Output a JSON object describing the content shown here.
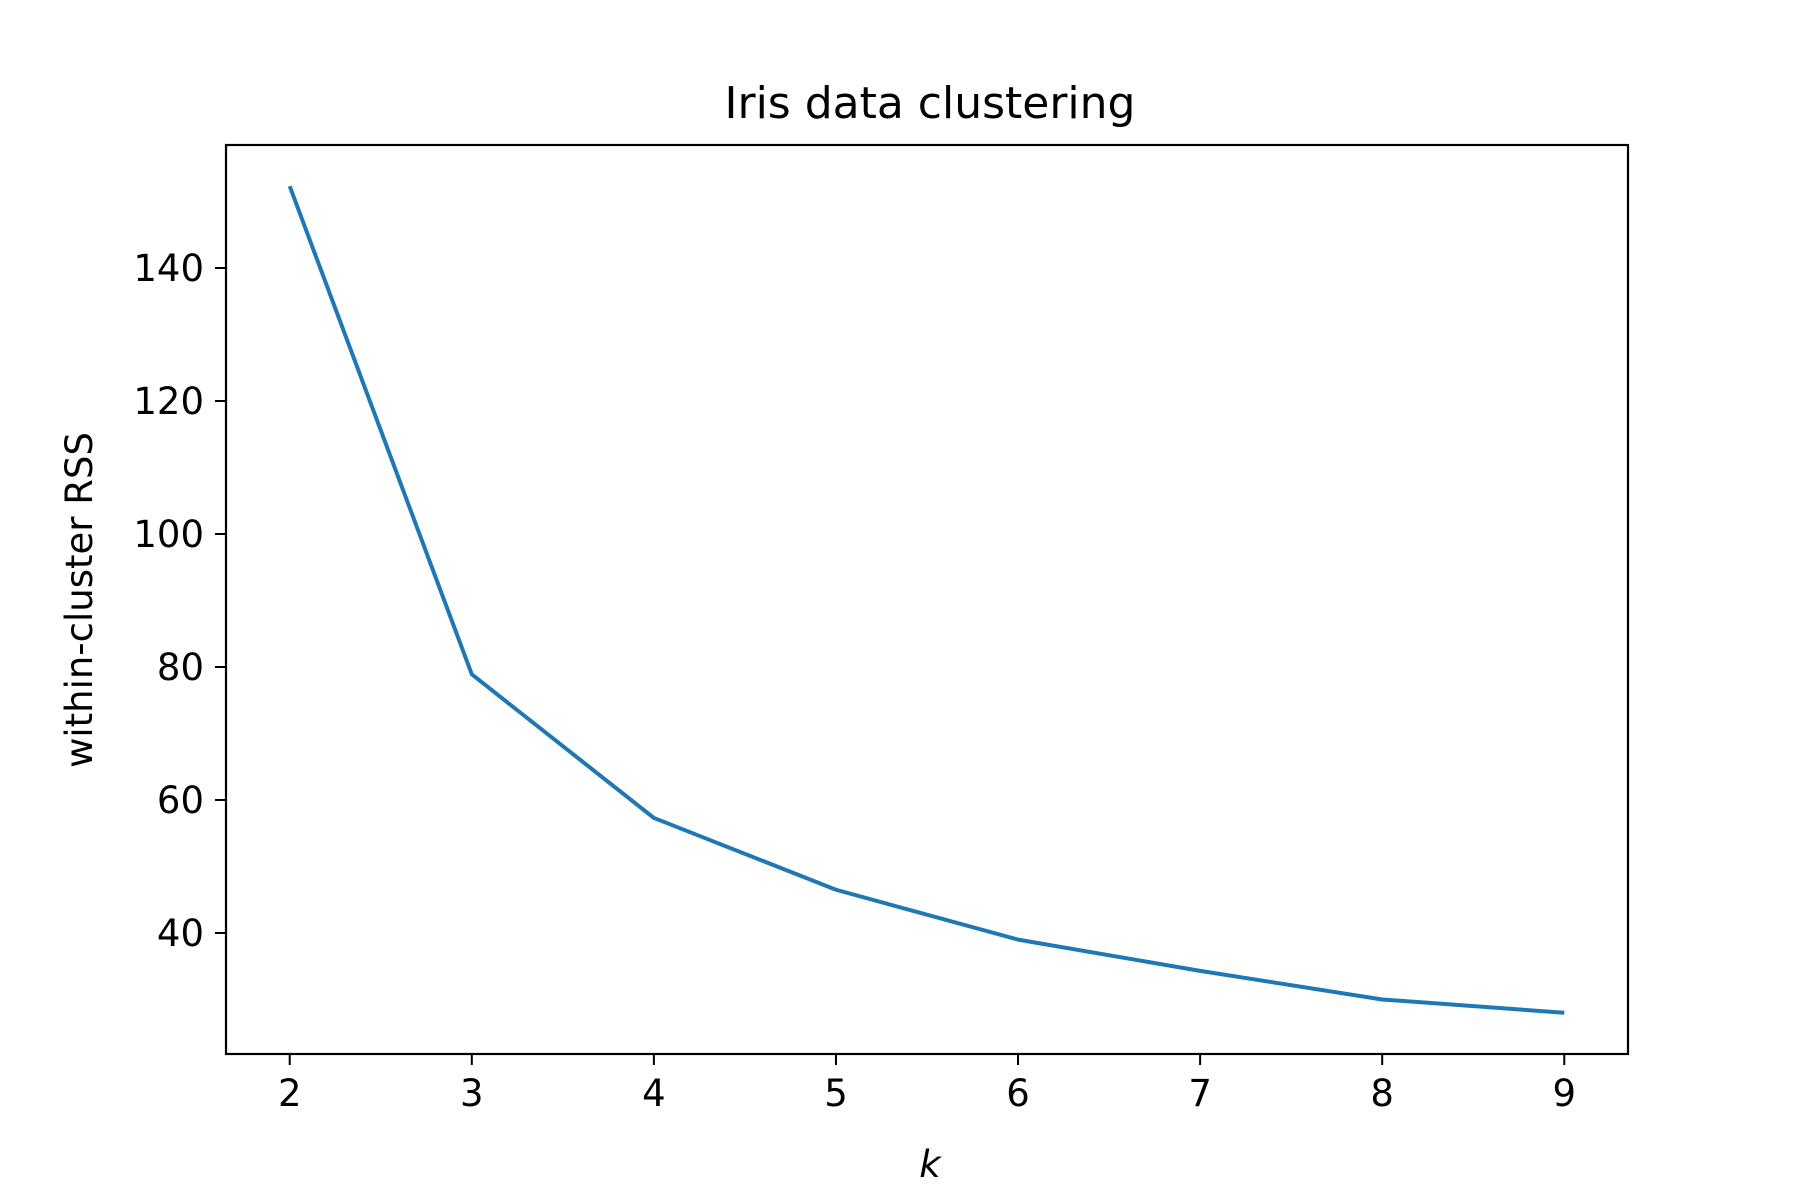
{
  "chart_data": {
    "type": "line",
    "title": "Iris data clustering",
    "xlabel": "k",
    "ylabel": "within-cluster RSS",
    "x": [
      2,
      3,
      4,
      5,
      6,
      7,
      8,
      9
    ],
    "series": [
      {
        "values": [
          152.3,
          78.9,
          57.3,
          46.5,
          39.0,
          34.3,
          30.0,
          28.0
        ],
        "color": "#1f77b4"
      }
    ],
    "xticks": [
      2,
      3,
      4,
      5,
      6,
      7,
      8,
      9
    ],
    "yticks": [
      40,
      60,
      80,
      100,
      120,
      140
    ],
    "xlim": [
      1.65,
      9.35
    ],
    "ylim": [
      21.8,
      158.5
    ],
    "grid": false,
    "legend": "none"
  }
}
